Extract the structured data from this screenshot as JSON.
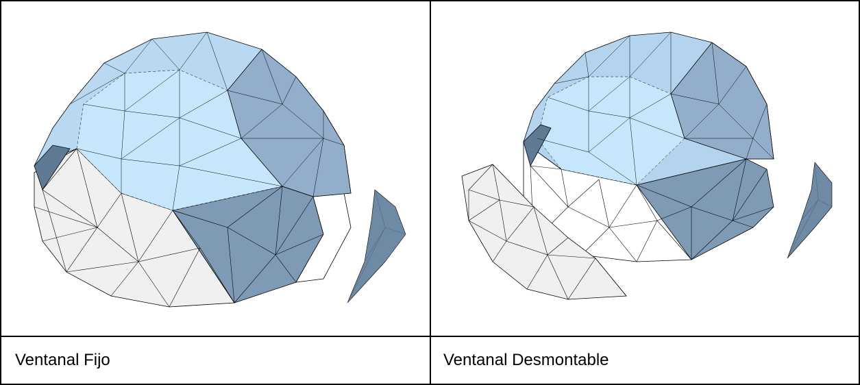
{
  "table": {
    "cells": [
      {
        "caption": "Ventanal Fijo"
      },
      {
        "caption": "Ventanal Desmontable"
      }
    ]
  },
  "colors": {
    "panel_light": "#c6e6fb",
    "panel_mid": "#a7c7e6",
    "panel_dark": "#7f9ab5",
    "panel_shadow": "#5f7a93",
    "panel_white": "#f0f0f0",
    "outline": "#000000"
  }
}
